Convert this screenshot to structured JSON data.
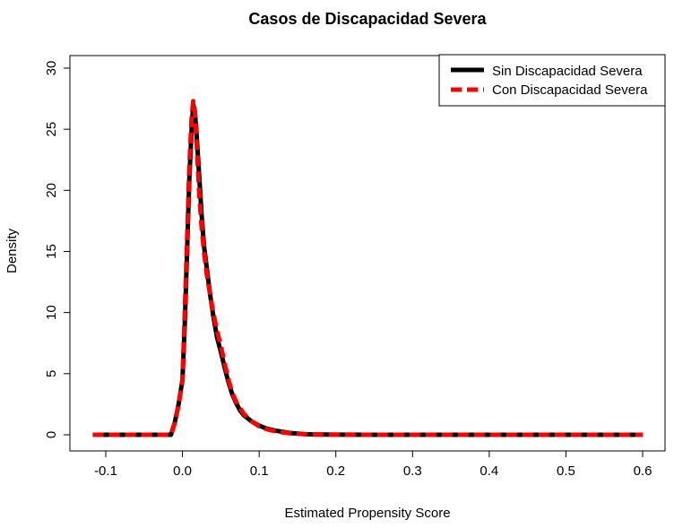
{
  "chart_data": {
    "type": "line",
    "title": "Casos de Discapacidad Severa",
    "xlabel": "Estimated Propensity Score",
    "ylabel": "Density",
    "xlim": [
      -0.12,
      0.6
    ],
    "ylim": [
      0,
      30
    ],
    "x_ticks": [
      "-0.1",
      "0.0",
      "0.1",
      "0.2",
      "0.3",
      "0.4",
      "0.5",
      "0.6"
    ],
    "y_ticks": [
      "0",
      "5",
      "10",
      "15",
      "20",
      "25",
      "30"
    ],
    "legend_position": "top-right",
    "grid": false,
    "series": [
      {
        "name": "Sin Discapacidad Severa",
        "color": "#000000",
        "style": "solid",
        "points": [
          [
            -0.117,
            0
          ],
          [
            -0.05,
            0
          ],
          [
            -0.015,
            0
          ],
          [
            -0.01,
            1.0
          ],
          [
            -0.005,
            2.5
          ],
          [
            0.0,
            4.5
          ],
          [
            0.003,
            9
          ],
          [
            0.006,
            15
          ],
          [
            0.009,
            21
          ],
          [
            0.012,
            25
          ],
          [
            0.014,
            27
          ],
          [
            0.016,
            26.5
          ],
          [
            0.018,
            25
          ],
          [
            0.02,
            23
          ],
          [
            0.022,
            21
          ],
          [
            0.025,
            18
          ],
          [
            0.028,
            15.5
          ],
          [
            0.032,
            13.5
          ],
          [
            0.036,
            11.5
          ],
          [
            0.04,
            9.8
          ],
          [
            0.045,
            8.0
          ],
          [
            0.05,
            6.8
          ],
          [
            0.055,
            5.5
          ],
          [
            0.06,
            4.3
          ],
          [
            0.065,
            3.3
          ],
          [
            0.07,
            2.6
          ],
          [
            0.075,
            2.0
          ],
          [
            0.08,
            1.6
          ],
          [
            0.09,
            1.1
          ],
          [
            0.1,
            0.75
          ],
          [
            0.11,
            0.5
          ],
          [
            0.12,
            0.35
          ],
          [
            0.13,
            0.25
          ],
          [
            0.14,
            0.15
          ],
          [
            0.15,
            0.1
          ],
          [
            0.16,
            0.05
          ],
          [
            0.17,
            0.03
          ],
          [
            0.2,
            0.01
          ],
          [
            0.25,
            0
          ],
          [
            0.6,
            0
          ]
        ]
      },
      {
        "name": "Con Discapacidad Severa",
        "color": "#ff0000",
        "style": "dashed",
        "points": [
          [
            -0.117,
            0
          ],
          [
            -0.05,
            0
          ],
          [
            -0.015,
            0
          ],
          [
            -0.01,
            1.0
          ],
          [
            -0.005,
            2.5
          ],
          [
            0.0,
            4.5
          ],
          [
            0.003,
            10
          ],
          [
            0.006,
            16
          ],
          [
            0.009,
            22
          ],
          [
            0.012,
            26
          ],
          [
            0.014,
            27.3
          ],
          [
            0.016,
            26.5
          ],
          [
            0.018,
            24.5
          ],
          [
            0.02,
            22
          ],
          [
            0.022,
            19.5
          ],
          [
            0.025,
            17
          ],
          [
            0.028,
            15
          ],
          [
            0.032,
            13
          ],
          [
            0.036,
            11.5
          ],
          [
            0.04,
            10
          ],
          [
            0.045,
            8.5
          ],
          [
            0.05,
            7.3
          ],
          [
            0.055,
            5.8
          ],
          [
            0.06,
            4.5
          ],
          [
            0.065,
            3.4
          ],
          [
            0.07,
            2.7
          ],
          [
            0.075,
            2.2
          ],
          [
            0.08,
            1.7
          ],
          [
            0.09,
            1.1
          ],
          [
            0.1,
            0.7
          ],
          [
            0.11,
            0.45
          ],
          [
            0.12,
            0.3
          ],
          [
            0.13,
            0.2
          ],
          [
            0.14,
            0.12
          ],
          [
            0.15,
            0.08
          ],
          [
            0.16,
            0.05
          ],
          [
            0.17,
            0.03
          ],
          [
            0.2,
            0.01
          ],
          [
            0.25,
            0
          ],
          [
            0.6,
            0
          ]
        ]
      }
    ]
  }
}
